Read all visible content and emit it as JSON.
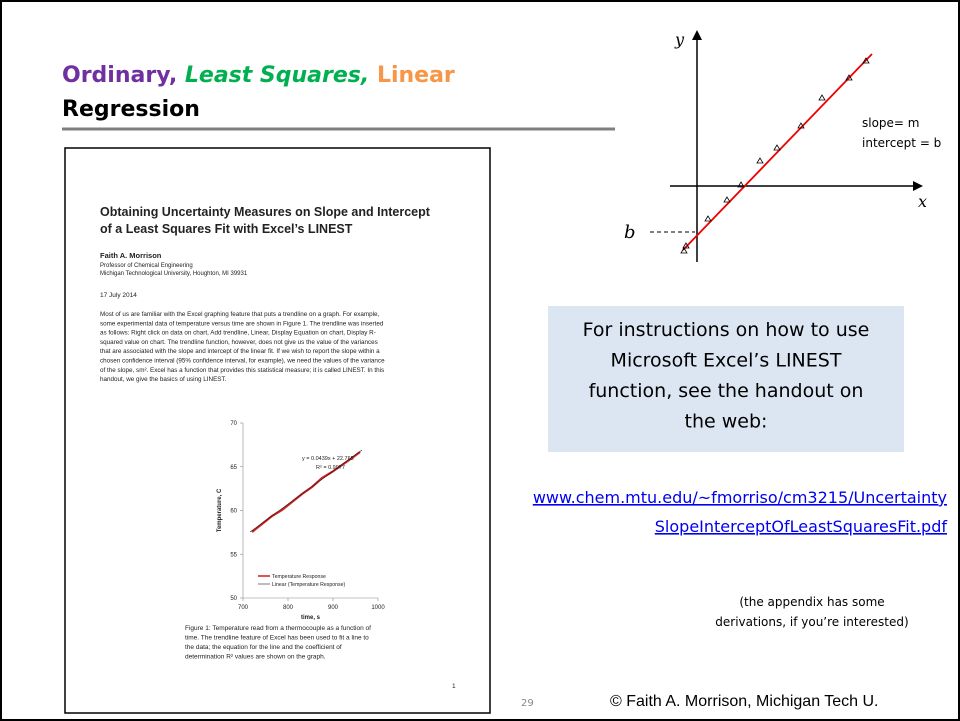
{
  "title": {
    "part1": "Ordinary,",
    "part2": "Least Squares,",
    "part3": "Linear",
    "line2": "Regression"
  },
  "handout": {
    "title": [
      "Obtaining Uncertainty Measures on Slope and Intercept",
      "of a Least Squares Fit with Excel’s LINEST"
    ],
    "author": "Faith A. Morrison",
    "affiliation": [
      "Professor of Chemical Engineering",
      "Michigan Technological University, Houghton, MI 39931"
    ],
    "date": "17 July 2014",
    "paragraph": [
      "Most of us are familiar with the Excel graphing feature that puts a trendline on a graph.  For example,",
      "some experimental data of temperature versus time are shown in Figure 1.  The trendline was inserted",
      "as follows:  Right click on data on chart, Add trendline, Linear, Display Equation on chart, Display R-",
      "squared value on chart.  The trendline function, however, does not give us the value of the variances",
      "that are associated with the slope and intercept of the linear fit.  If we wish to report the slope within a",
      "chosen confidence interval (95% confidence interval, for example), we need the values of the variance",
      "of the slope, sm².  Excel has a function that provides this statistical measure; it is called LINEST.  In this",
      "handout, we give the basics of using LINEST."
    ],
    "chart": {
      "yticks": [
        70,
        65,
        60,
        55,
        50
      ],
      "xticks": [
        700,
        800,
        900,
        1000
      ],
      "ylim": [
        50,
        70
      ],
      "xlim": [
        700,
        1000
      ],
      "xlabel": "time, s",
      "ylabel": "Temperature, C",
      "equation": "y = 0.0439x + 22.765",
      "r2": "R² = 0.9977",
      "legend": [
        "Temperature Response",
        "Linear (Temperature Response)"
      ]
    },
    "caption": [
      "Figure 1:  Temperature read from a thermocouple as a function of",
      "time.  The trendline feature of Excel has been used to fit a line to",
      "the data; the equation for the line and the coefficient of",
      "determination R² values are shown on the graph."
    ],
    "page": "1"
  },
  "diagram": {
    "y_label": "y",
    "x_label": "x",
    "b_label": "b",
    "slope": "slope= m",
    "intercept": "intercept = b"
  },
  "callout": [
    "For instructions on how to use",
    "Microsoft Excel’s LINEST",
    "function, see the handout on",
    "the web:"
  ],
  "link": [
    "www.chem.mtu.edu/~fmorriso/cm3215/Uncertainty",
    "SlopeInterceptOfLeastSquaresFit.pdf"
  ],
  "note": [
    "(the appendix has some",
    "derivations, if you’re interested)"
  ],
  "footer": {
    "slide_number": "29",
    "copyright": "© Faith A. Morrison, Michigan Tech U."
  }
}
